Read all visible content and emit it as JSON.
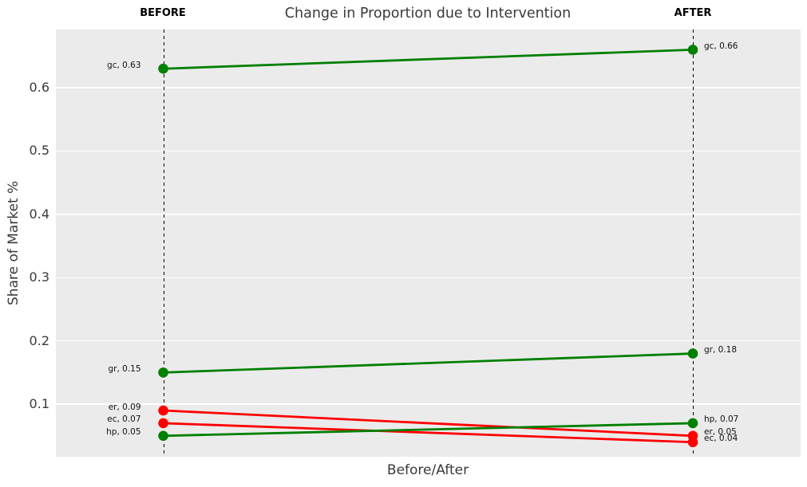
{
  "chart_data": {
    "type": "line",
    "variant": "slopegraph",
    "title": "Change in Proportion due to Intervention",
    "xlabel": "Before/After",
    "ylabel": "Share of Market %",
    "column_headers": [
      "BEFORE",
      "AFTER"
    ],
    "x_categories": [
      "BEFORE",
      "AFTER"
    ],
    "yticks": [
      "0.1",
      "0.2",
      "0.3",
      "0.4",
      "0.5",
      "0.6"
    ],
    "ylim": [
      0.017,
      0.692
    ],
    "grid": true,
    "legend": "none",
    "plot_background": "#ebebeb",
    "grid_color": "#ffffff",
    "dashed_line_color": "#000000",
    "colors": {
      "increase": "#008000",
      "decrease": "#ff0000"
    },
    "series": [
      {
        "name": "gc",
        "values": [
          0.63,
          0.66
        ],
        "color": "#008000",
        "labels": [
          "gc, 0.63",
          "gc, 0.66"
        ]
      },
      {
        "name": "gr",
        "values": [
          0.15,
          0.18
        ],
        "color": "#008000",
        "labels": [
          "gr, 0.15",
          "gr, 0.18"
        ]
      },
      {
        "name": "er",
        "values": [
          0.09,
          0.05
        ],
        "color": "#ff0000",
        "labels": [
          "er, 0.09",
          "er, 0.05"
        ]
      },
      {
        "name": "ec",
        "values": [
          0.07,
          0.04
        ],
        "color": "#ff0000",
        "labels": [
          "ec, 0.07",
          "ec, 0.04"
        ]
      },
      {
        "name": "hp",
        "values": [
          0.05,
          0.07
        ],
        "color": "#008000",
        "labels": [
          "hp, 0.05",
          "hp, 0.07"
        ]
      }
    ]
  }
}
